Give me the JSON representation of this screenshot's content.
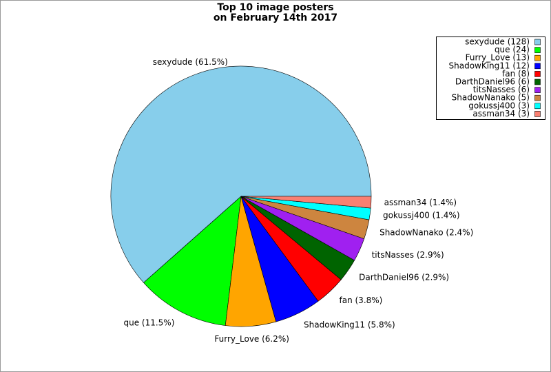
{
  "chart_data": {
    "type": "pie",
    "title": "Top 10 image posters\non February 14th 2017",
    "categories": [
      "sexydude (128)",
      "que (24)",
      "Furry_Love (13)",
      "ShadowKing11 (12)",
      "fan (8)",
      "DarthDaniel96 (6)",
      "titsNasses (6)",
      "ShadowNanako (5)",
      "gokussj400 (3)",
      "assman34 (3)"
    ],
    "values": [
      128,
      24,
      13,
      12,
      8,
      6,
      6,
      5,
      3,
      3
    ],
    "slice_labels": [
      "sexydude (61.5%)",
      "que (11.5%)",
      "Furry_Love (6.2%)",
      "ShadowKing11 (5.8%)",
      "fan (3.8%)",
      "DarthDaniel96 (2.9%)",
      "titsNasses (2.9%)",
      "ShadowNanako (2.4%)",
      "gokussj400 (1.4%)",
      "assman34 (1.4%)"
    ],
    "colors": [
      "#87ceeb",
      "#00ff00",
      "#ffa500",
      "#0000ff",
      "#ff0000",
      "#006400",
      "#a020f0",
      "#cd853f",
      "#00ffff",
      "#fa8072"
    ],
    "legend": "upper right"
  }
}
